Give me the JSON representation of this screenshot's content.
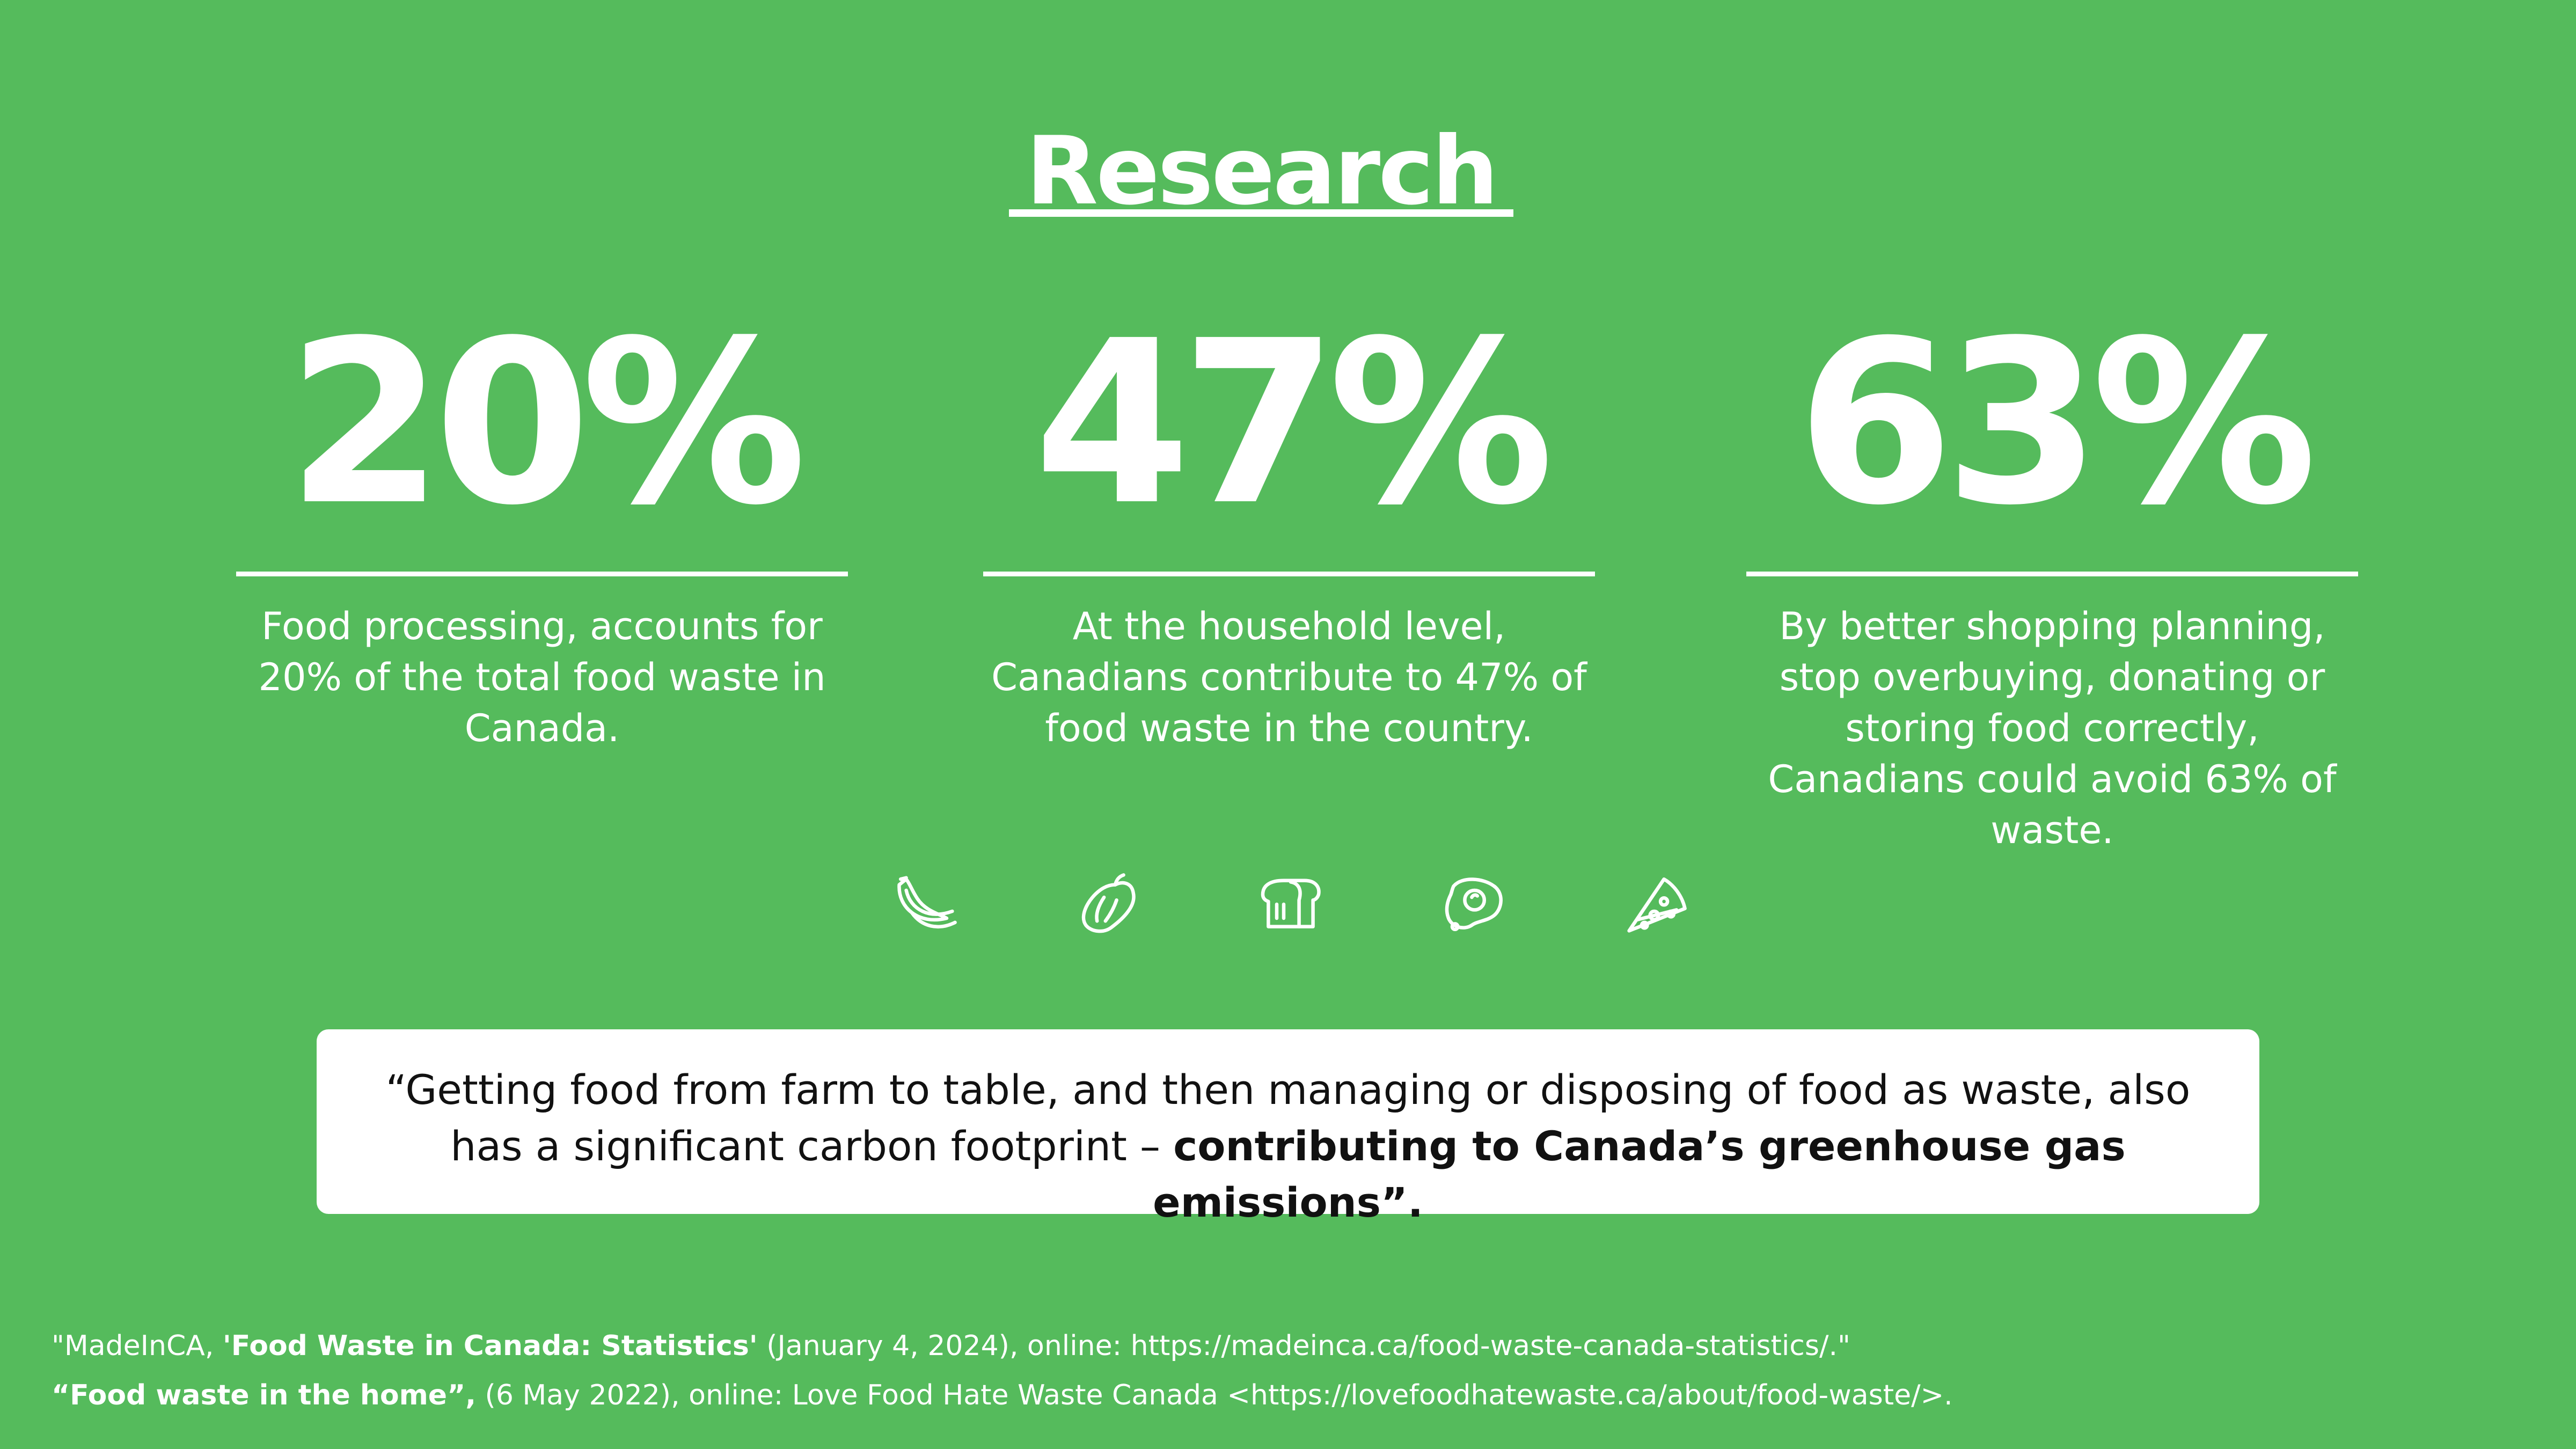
{
  "title": "Research",
  "stats": [
    {
      "value": "20%",
      "description": "Food processing, accounts for 20% of the total food waste in Canada."
    },
    {
      "value": "47%",
      "description": "At the household level, Canadians contribute to 47% of food waste in the country."
    },
    {
      "value": "63%",
      "description": "By better shopping planning, stop overbuying, donating or storing food correctly, Canadians could avoid 63% of waste."
    }
  ],
  "icons": [
    "banana-icon",
    "pepper-icon",
    "bread-icon",
    "fried-egg-icon",
    "pizza-slice-icon"
  ],
  "quote": {
    "text_plain": "“Getting food from farm to table, and then managing or disposing of food as waste, also has a significant carbon footprint – ",
    "text_bold": "contributing to Canada’s greenhouse gas emissions”."
  },
  "references": [
    {
      "prefix": "\"MadeInCA, ",
      "bold": "'Food Waste in Canada: Statistics'",
      "suffix": " (January 4, 2024), online: https://madeinca.ca/food-waste-canada-statistics/.\""
    },
    {
      "prefix": "",
      "bold": "“Food waste in the home”,",
      "suffix": " (6 May 2022), online: Love Food Hate Waste Canada <https://lovefoodhatewaste.ca/about/food-waste/>."
    }
  ],
  "colors": {
    "background": "#55bb5c",
    "text": "#ffffff",
    "quote_box": "#ffffff",
    "quote_text": "#111111"
  }
}
